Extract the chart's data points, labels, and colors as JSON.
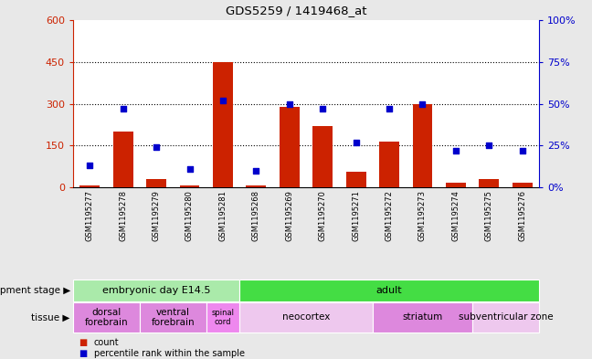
{
  "title": "GDS5259 / 1419468_at",
  "samples": [
    "GSM1195277",
    "GSM1195278",
    "GSM1195279",
    "GSM1195280",
    "GSM1195281",
    "GSM1195268",
    "GSM1195269",
    "GSM1195270",
    "GSM1195271",
    "GSM1195272",
    "GSM1195273",
    "GSM1195274",
    "GSM1195275",
    "GSM1195276"
  ],
  "counts": [
    8,
    200,
    30,
    8,
    450,
    8,
    290,
    220,
    55,
    165,
    300,
    18,
    30,
    18
  ],
  "percentiles": [
    13,
    47,
    24,
    11,
    52,
    10,
    50,
    47,
    27,
    47,
    50,
    22,
    25,
    22
  ],
  "ylim_left": [
    0,
    600
  ],
  "ylim_right": [
    0,
    100
  ],
  "yticks_left": [
    0,
    150,
    300,
    450,
    600
  ],
  "yticks_right": [
    0,
    25,
    50,
    75,
    100
  ],
  "bar_color": "#cc2200",
  "dot_color": "#0000cc",
  "bg_color": "#e8e8e8",
  "plot_bg": "#ffffff",
  "development_stages": [
    {
      "label": "embryonic day E14.5",
      "start": 0,
      "end": 5,
      "color": "#aaeaaa"
    },
    {
      "label": "adult",
      "start": 5,
      "end": 14,
      "color": "#44dd44"
    }
  ],
  "tissues": [
    {
      "label": "dorsal\nforebrain",
      "start": 0,
      "end": 2,
      "color": "#dd88dd"
    },
    {
      "label": "ventral\nforebrain",
      "start": 2,
      "end": 4,
      "color": "#dd88dd"
    },
    {
      "label": "spinal\ncord",
      "start": 4,
      "end": 5,
      "color": "#ee88ee"
    },
    {
      "label": "neocortex",
      "start": 5,
      "end": 9,
      "color": "#eec8ee"
    },
    {
      "label": "striatum",
      "start": 9,
      "end": 12,
      "color": "#dd88dd"
    },
    {
      "label": "subventricular zone",
      "start": 12,
      "end": 14,
      "color": "#eec8ee"
    }
  ],
  "left_axis_color": "#cc2200",
  "right_axis_color": "#0000cc",
  "grid_color": "#000000",
  "grid_linestyle": ":",
  "grid_linewidth": 0.8
}
